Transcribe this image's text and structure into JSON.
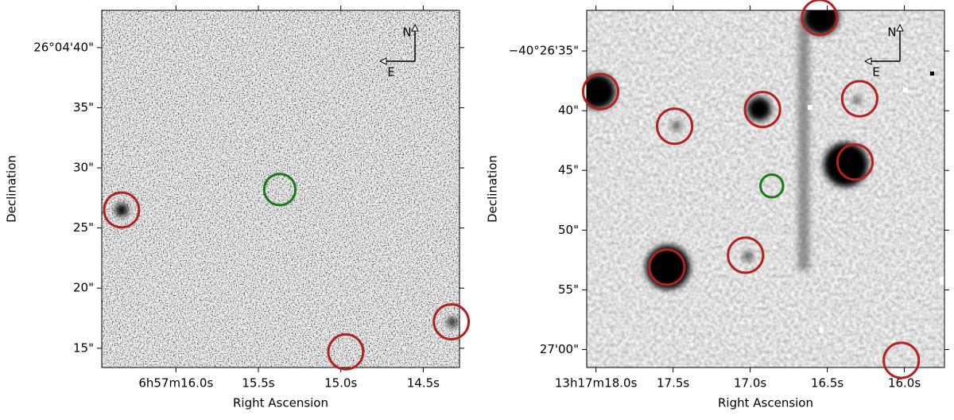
{
  "chart_data": [
    {
      "type": "sky-image",
      "xlabel": "Right Ascension",
      "ylabel": "Declination",
      "xlim": [
        16.45,
        14.28
      ],
      "ylim": [
        13.4,
        43.1
      ],
      "xticks": [
        {
          "value": 16.0,
          "label": "6h57m16.0s"
        },
        {
          "value": 15.5,
          "label": "15.5s"
        },
        {
          "value": 15.0,
          "label": "15.0s"
        },
        {
          "value": 14.5,
          "label": "14.5s"
        }
      ],
      "yticks": [
        {
          "value": 40,
          "label": "26°04'40\""
        },
        {
          "value": 35,
          "label": "35\""
        },
        {
          "value": 30,
          "label": "30\""
        },
        {
          "value": 25,
          "label": "25\""
        },
        {
          "value": 20,
          "label": "20\""
        },
        {
          "value": 15,
          "label": "15\""
        }
      ],
      "compass": {
        "north": "N",
        "east": "E"
      },
      "circles": [
        {
          "x": 16.33,
          "y": 26.5,
          "r": 1.45,
          "color": "#b22222"
        },
        {
          "x": 15.37,
          "y": 28.2,
          "r": 1.3,
          "color": "#1a7a1a"
        },
        {
          "x": 14.97,
          "y": 14.7,
          "r": 1.45,
          "color": "#b22222"
        },
        {
          "x": 14.33,
          "y": 17.2,
          "r": 1.45,
          "color": "#b22222"
        }
      ]
    },
    {
      "type": "sky-image",
      "xlabel": "Right Ascension",
      "ylabel": "Declination",
      "xlim": [
        18.06,
        15.74
      ],
      "ylim": [
        61.5,
        31.6
      ],
      "xticks": [
        {
          "value": 18.0,
          "label": "13h17m18.0s"
        },
        {
          "value": 17.5,
          "label": "17.5s"
        },
        {
          "value": 17.0,
          "label": "17.0s"
        },
        {
          "value": 16.5,
          "label": "16.5s"
        },
        {
          "value": 16.0,
          "label": "16.0s"
        }
      ],
      "yticks": [
        {
          "value": 35,
          "label": "−40°26'35\""
        },
        {
          "value": 40,
          "label": "40\""
        },
        {
          "value": 45,
          "label": "45\""
        },
        {
          "value": 50,
          "label": "50\""
        },
        {
          "value": 55,
          "label": "55\""
        },
        {
          "value": 60,
          "label": "27'00\""
        }
      ],
      "compass": {
        "north": "N",
        "east": "E"
      },
      "circles": [
        {
          "x": 17.97,
          "y": 38.4,
          "r": 1.47,
          "color": "#b22222"
        },
        {
          "x": 17.49,
          "y": 41.3,
          "r": 1.47,
          "color": "#b22222"
        },
        {
          "x": 16.92,
          "y": 39.9,
          "r": 1.47,
          "color": "#b22222"
        },
        {
          "x": 16.55,
          "y": 32.2,
          "r": 1.47,
          "color": "#b22222"
        },
        {
          "x": 16.29,
          "y": 39.0,
          "r": 1.47,
          "color": "#b22222"
        },
        {
          "x": 16.32,
          "y": 44.3,
          "r": 1.47,
          "color": "#b22222"
        },
        {
          "x": 17.54,
          "y": 53.1,
          "r": 1.47,
          "color": "#b22222"
        },
        {
          "x": 17.03,
          "y": 52.1,
          "r": 1.47,
          "color": "#b22222"
        },
        {
          "x": 16.02,
          "y": 60.9,
          "r": 1.47,
          "color": "#b22222"
        },
        {
          "x": 16.86,
          "y": 46.3,
          "r": 0.95,
          "color": "#1a7a1a"
        }
      ]
    }
  ]
}
